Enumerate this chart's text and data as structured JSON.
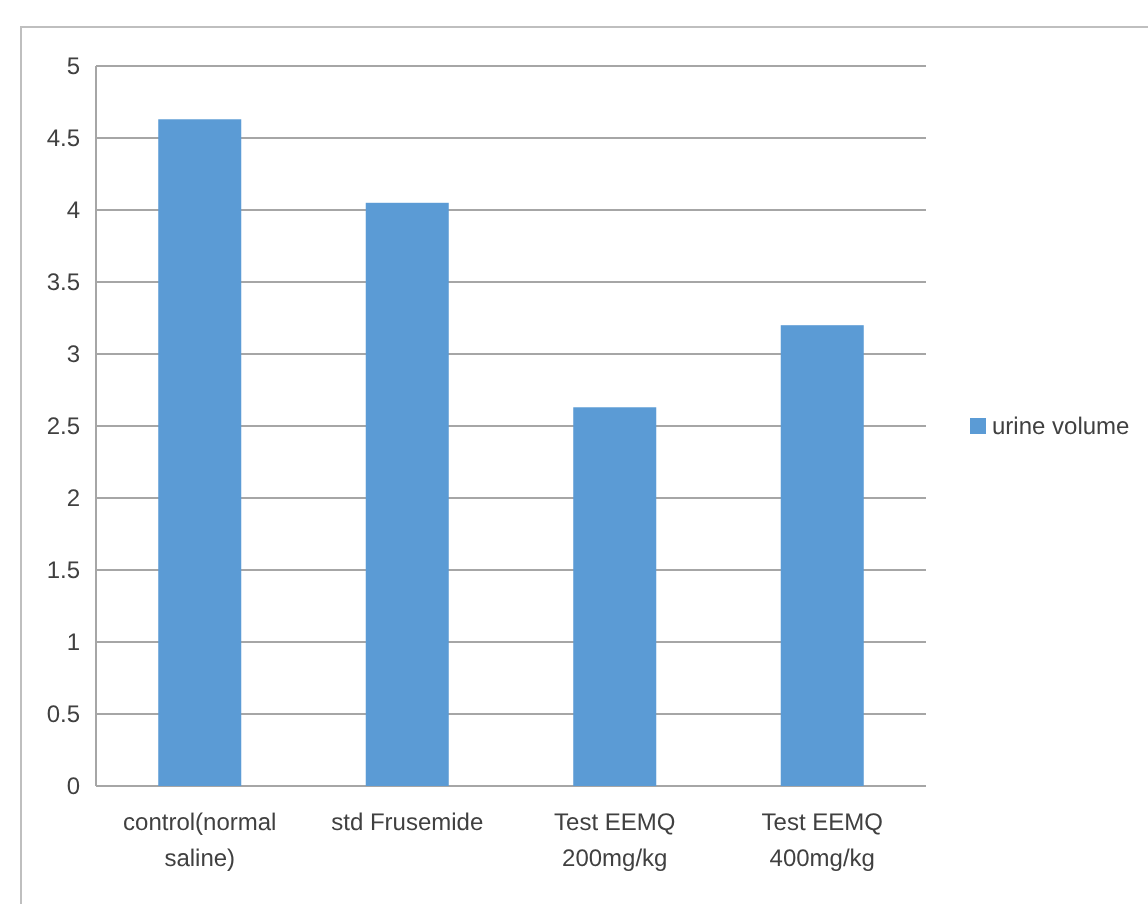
{
  "chart_data": {
    "type": "bar",
    "categories": [
      "control(normal saline)",
      "std Frusemide",
      "Test EEMQ 200mg/kg",
      "Test EEMQ 400mg/kg"
    ],
    "series": [
      {
        "name": "urine volume",
        "color": "#5b9bd5",
        "values": [
          4.63,
          4.05,
          2.63,
          3.2
        ]
      }
    ],
    "ylim": [
      0,
      5
    ],
    "yticks": [
      0,
      0.5,
      1,
      1.5,
      2,
      2.5,
      3,
      3.5,
      4,
      4.5,
      5
    ],
    "grid": "y",
    "legend": "right"
  }
}
